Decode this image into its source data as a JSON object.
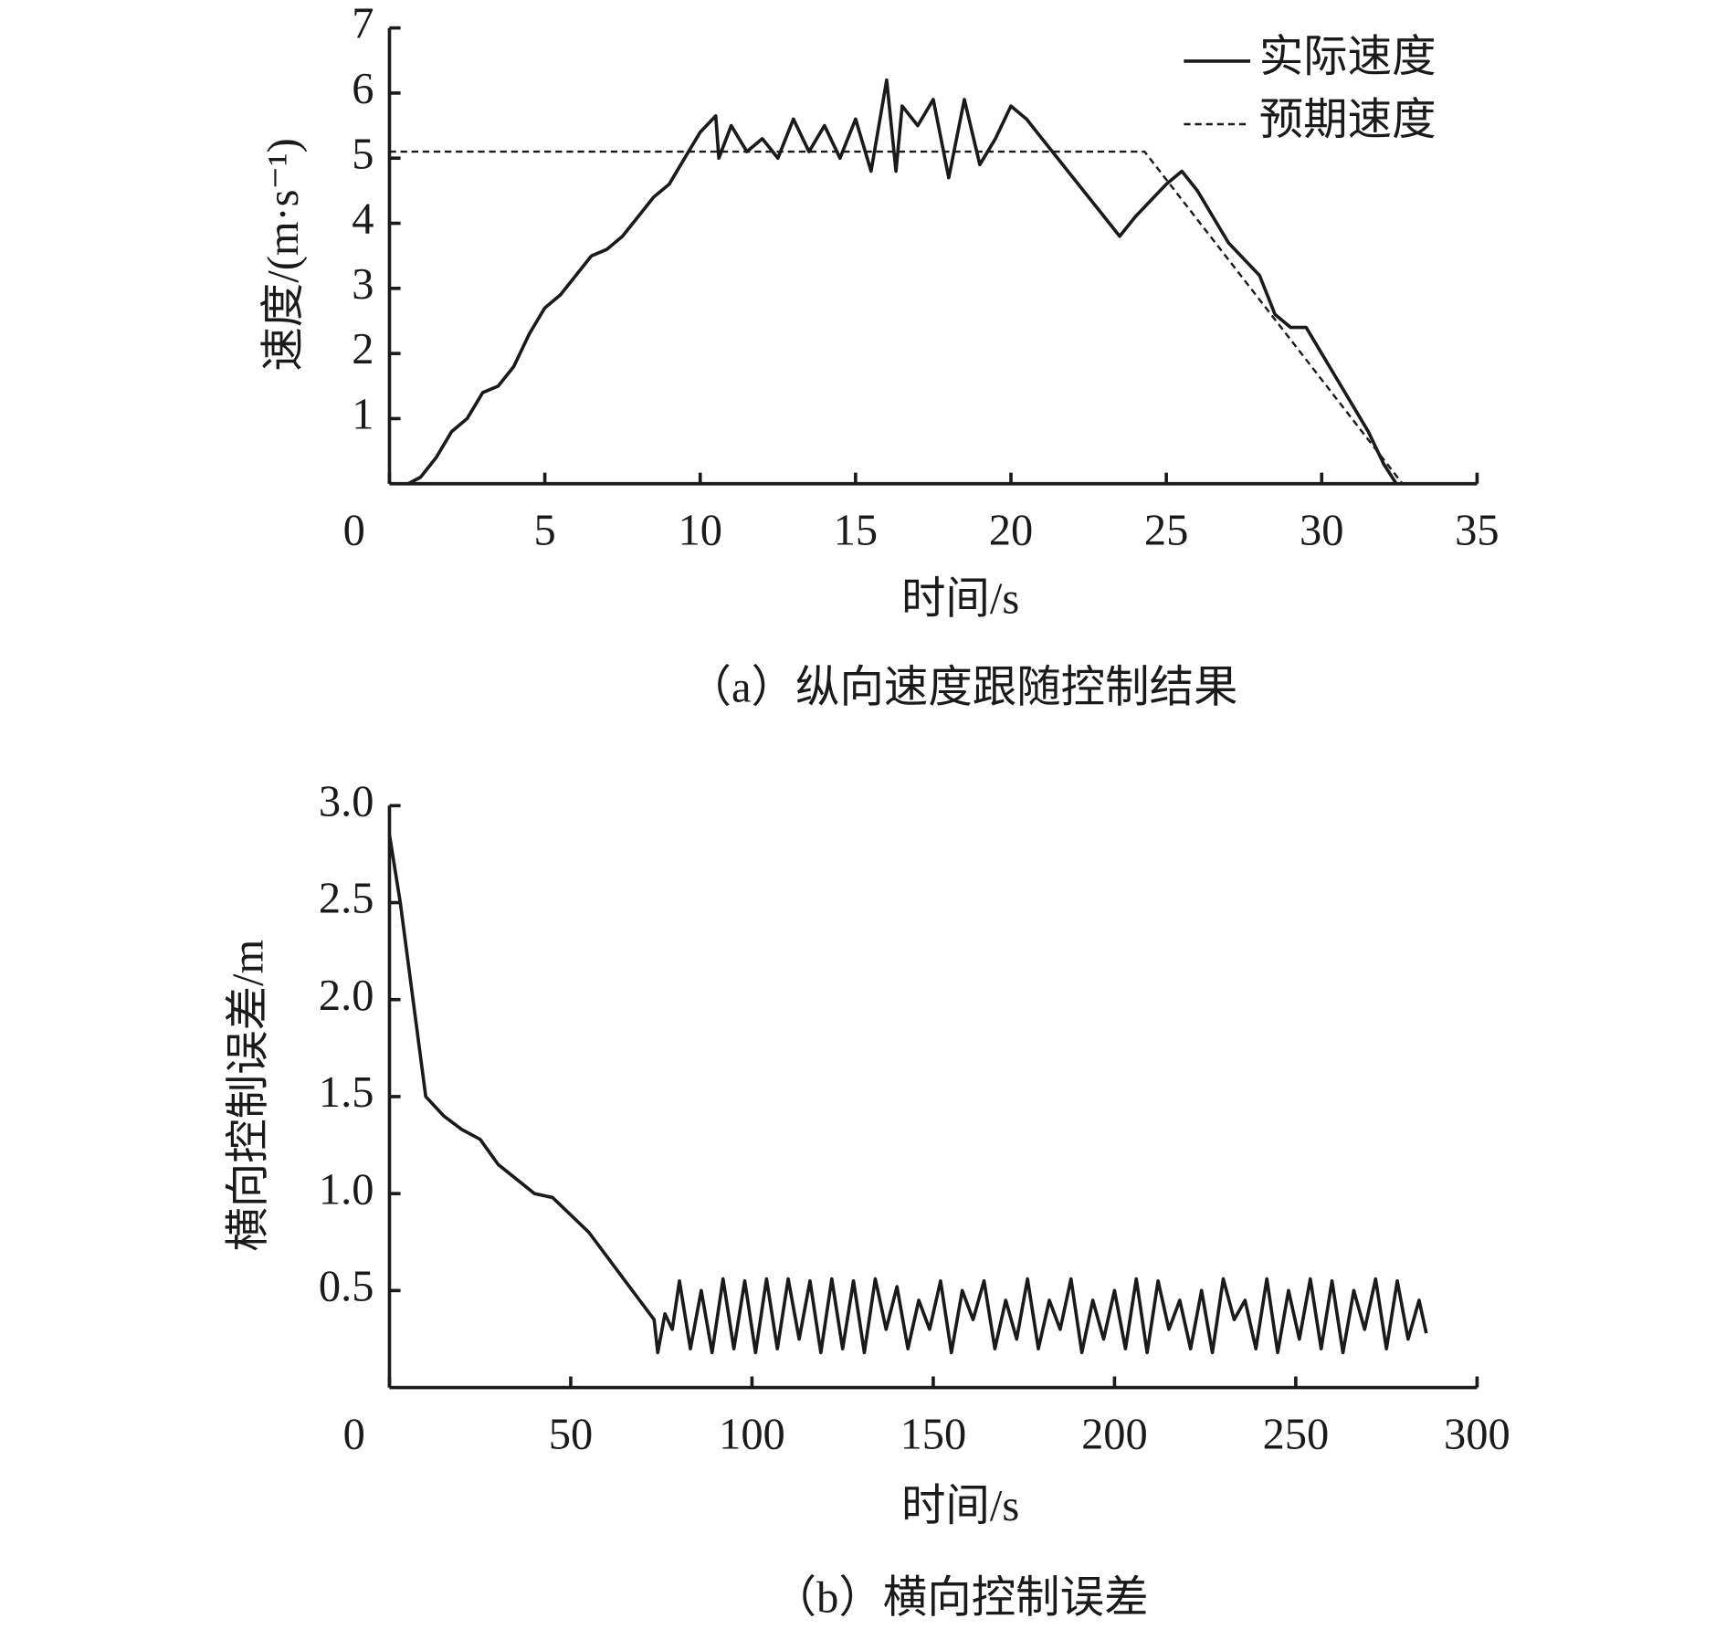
{
  "chart_data": [
    {
      "type": "line",
      "y_label": "速度/(m·s⁻¹)",
      "x_label": "时间/s",
      "caption": "（a）纵向速度跟随控制结果",
      "xlim": [
        0,
        35
      ],
      "ylim": [
        0,
        7
      ],
      "xticks": [
        0,
        5,
        10,
        15,
        20,
        25,
        30,
        35
      ],
      "yticks": [
        1,
        2,
        3,
        4,
        5,
        6,
        7
      ],
      "legend": "upper right",
      "series": [
        {
          "name": "实际速度",
          "color": "#1a1a1a",
          "dash": "solid",
          "x": [
            0.6,
            1,
            1.5,
            2,
            2.5,
            3,
            3.5,
            4,
            4.5,
            5,
            5.5,
            6,
            6.5,
            7,
            7.5,
            8,
            8.5,
            9,
            9.5,
            10,
            10.5,
            10.6,
            11,
            11.5,
            12,
            12.5,
            13,
            13.5,
            14,
            14.5,
            15,
            15.5,
            16,
            16.3,
            16.5,
            17,
            17.5,
            18,
            18.5,
            19,
            19.5,
            20,
            20.5,
            21,
            22,
            23,
            23.5,
            24,
            25,
            25.5,
            26,
            26.5,
            27,
            28,
            28.5,
            29,
            29.5,
            30,
            30.5,
            31,
            31.5,
            32,
            32.4
          ],
          "values": [
            0,
            0.1,
            0.4,
            0.8,
            1.0,
            1.4,
            1.5,
            1.8,
            2.3,
            2.7,
            2.9,
            3.2,
            3.5,
            3.6,
            3.8,
            4.1,
            4.4,
            4.6,
            5.0,
            5.4,
            5.65,
            5.0,
            5.5,
            5.1,
            5.3,
            5.0,
            5.6,
            5.1,
            5.5,
            5.0,
            5.6,
            4.8,
            6.2,
            4.8,
            5.8,
            5.5,
            5.9,
            4.7,
            5.9,
            4.9,
            5.3,
            5.8,
            5.6,
            5.3,
            4.7,
            4.1,
            3.8,
            4.1,
            4.6,
            4.8,
            4.5,
            4.1,
            3.7,
            3.2,
            2.6,
            2.4,
            2.4,
            2.0,
            1.6,
            1.2,
            0.8,
            0.3,
            0
          ]
        },
        {
          "name": "预期速度",
          "color": "#1a1a1a",
          "dash": "dashed",
          "x": [
            0,
            24.3,
            32.6
          ],
          "values": [
            5.1,
            5.1,
            0
          ]
        }
      ]
    },
    {
      "type": "line",
      "y_label": "横向控制误差/m",
      "x_label": "时间/s",
      "caption": "（b）横向控制误差",
      "xlim": [
        0,
        300
      ],
      "ylim": [
        0,
        3.0
      ],
      "xticks": [
        0,
        50,
        100,
        150,
        200,
        250,
        300
      ],
      "yticks": [
        0.5,
        {
          "value": 1.0,
          "label": "1.0"
        },
        1.5,
        {
          "value": 2.0,
          "label": "2.0"
        },
        2.5,
        {
          "value": 3.0,
          "label": "3.0"
        }
      ],
      "series": [
        {
          "color": "#1a1a1a",
          "dash": "solid",
          "x": [
            0,
            3,
            10,
            15,
            20,
            25,
            30,
            40,
            45,
            55,
            65,
            73,
            74,
            76,
            78,
            80,
            83,
            86,
            89,
            92,
            95,
            98,
            101,
            104,
            107,
            110,
            113,
            116,
            119,
            122,
            125,
            128,
            131,
            134,
            137,
            140,
            143,
            146,
            149,
            152,
            155,
            158,
            161,
            164,
            167,
            170,
            173,
            176,
            179,
            182,
            185,
            188,
            191,
            194,
            197,
            200,
            203,
            206,
            209,
            212,
            215,
            218,
            221,
            224,
            227,
            230,
            233,
            236,
            239,
            242,
            245,
            248,
            251,
            254,
            257,
            260,
            263,
            266,
            269,
            272,
            275,
            278,
            281,
            284,
            286
          ],
          "values": [
            2.85,
            2.5,
            1.5,
            1.4,
            1.33,
            1.28,
            1.15,
            1.0,
            0.98,
            0.8,
            0.55,
            0.35,
            0.18,
            0.38,
            0.3,
            0.55,
            0.2,
            0.5,
            0.18,
            0.56,
            0.2,
            0.55,
            0.18,
            0.56,
            0.2,
            0.56,
            0.25,
            0.55,
            0.18,
            0.56,
            0.2,
            0.55,
            0.18,
            0.56,
            0.3,
            0.52,
            0.2,
            0.45,
            0.3,
            0.55,
            0.18,
            0.5,
            0.35,
            0.55,
            0.2,
            0.45,
            0.25,
            0.56,
            0.2,
            0.45,
            0.3,
            0.56,
            0.18,
            0.45,
            0.25,
            0.5,
            0.2,
            0.56,
            0.18,
            0.55,
            0.3,
            0.45,
            0.2,
            0.5,
            0.18,
            0.56,
            0.35,
            0.45,
            0.2,
            0.56,
            0.18,
            0.5,
            0.25,
            0.56,
            0.2,
            0.55,
            0.18,
            0.5,
            0.3,
            0.56,
            0.2,
            0.55,
            0.25,
            0.45,
            0.28
          ]
        }
      ]
    }
  ]
}
